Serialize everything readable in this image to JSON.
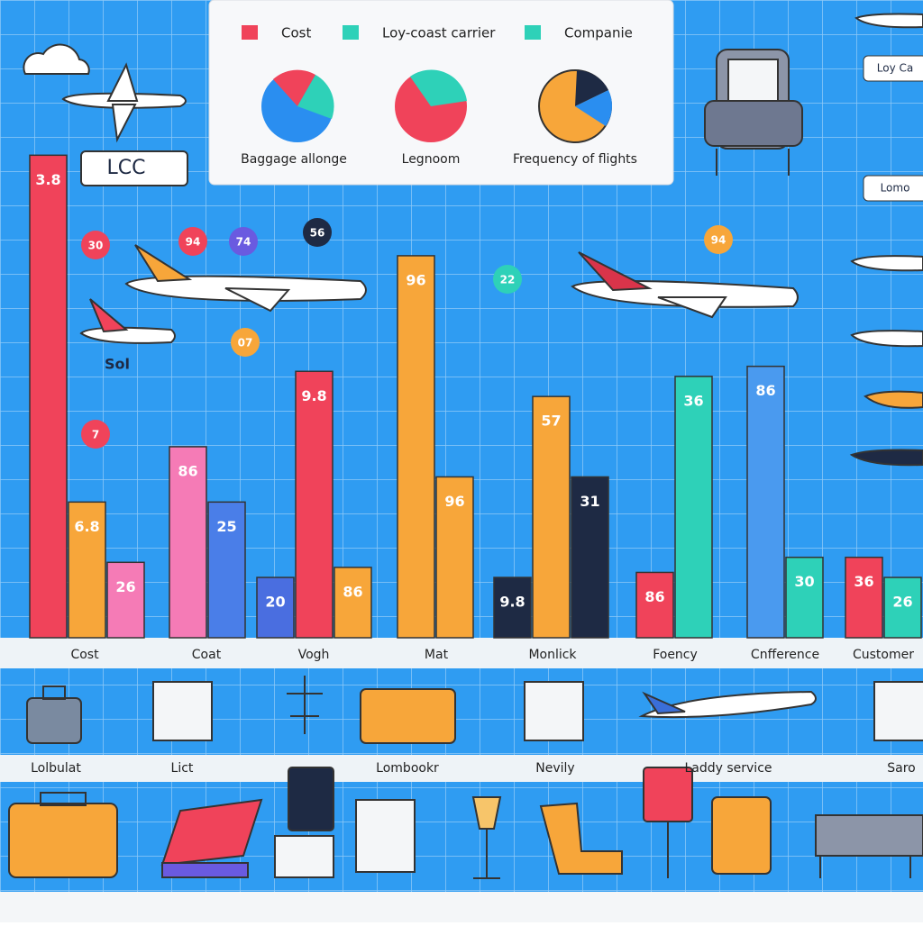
{
  "chart_data": {
    "type": "bar",
    "legend": [
      "Cost",
      "Loy-coast carrier",
      "Companie"
    ],
    "legend_colors": [
      "#f0435a",
      "#2ed1b8",
      "#2ed1b8"
    ],
    "pies": [
      "Baggage allonge",
      "Legnoom",
      "Frequency of flights"
    ],
    "tag": "LCC",
    "plane_label": "Sol",
    "side_labels": [
      "Loy Ca",
      "Lomo"
    ],
    "bubbles": [
      "30",
      "94",
      "74",
      "56",
      "22",
      "94",
      "07",
      "7"
    ],
    "ylim": [
      0,
      100
    ],
    "categories": [
      "Cost",
      "Coat",
      "Vogh",
      "Mat",
      "Monlick",
      "Foency",
      "Cnfference",
      "Customer"
    ],
    "groups": [
      [
        {
          "label": "3.8",
          "value": 96,
          "color": "#f0435a"
        },
        {
          "label": "6.8",
          "value": 27,
          "color": "#f7a63a"
        },
        {
          "label": "26",
          "value": 15,
          "color": "#f57bb6"
        }
      ],
      [
        {
          "label": "86",
          "value": 38,
          "color": "#f57bb6"
        },
        {
          "label": "25",
          "value": 27,
          "color": "#4a7ee8"
        }
      ],
      [
        {
          "label": "20",
          "value": 12,
          "color": "#4a6ee0"
        },
        {
          "label": "9.8",
          "value": 53,
          "color": "#f0435a"
        },
        {
          "label": "86",
          "value": 14,
          "color": "#f7a63a"
        }
      ],
      [
        {
          "label": "96",
          "value": 76,
          "color": "#f7a63a"
        },
        {
          "label": "96",
          "value": 32,
          "color": "#f7a63a"
        }
      ],
      [
        {
          "label": "9.8",
          "value": 12,
          "color": "#1e2a44"
        },
        {
          "label": "57",
          "value": 48,
          "color": "#f7a63a"
        },
        {
          "label": "31",
          "value": 32,
          "color": "#1e2a44"
        }
      ],
      [
        {
          "label": "86",
          "value": 13,
          "color": "#f0435a"
        },
        {
          "label": "36",
          "value": 52,
          "color": "#2ed1b8"
        }
      ],
      [
        {
          "label": "86",
          "value": 54,
          "color": "#4a9aef"
        },
        {
          "label": "30",
          "value": 16,
          "color": "#2ed1b8"
        }
      ],
      [
        {
          "label": "36",
          "value": 16,
          "color": "#f0435a"
        },
        {
          "label": "26",
          "value": 12,
          "color": "#2ed1b8"
        }
      ]
    ],
    "bottom_labels": [
      "Lolbulat",
      "Lict",
      "Lombookr",
      "Nevily",
      "Laddy service",
      "Saro"
    ]
  }
}
